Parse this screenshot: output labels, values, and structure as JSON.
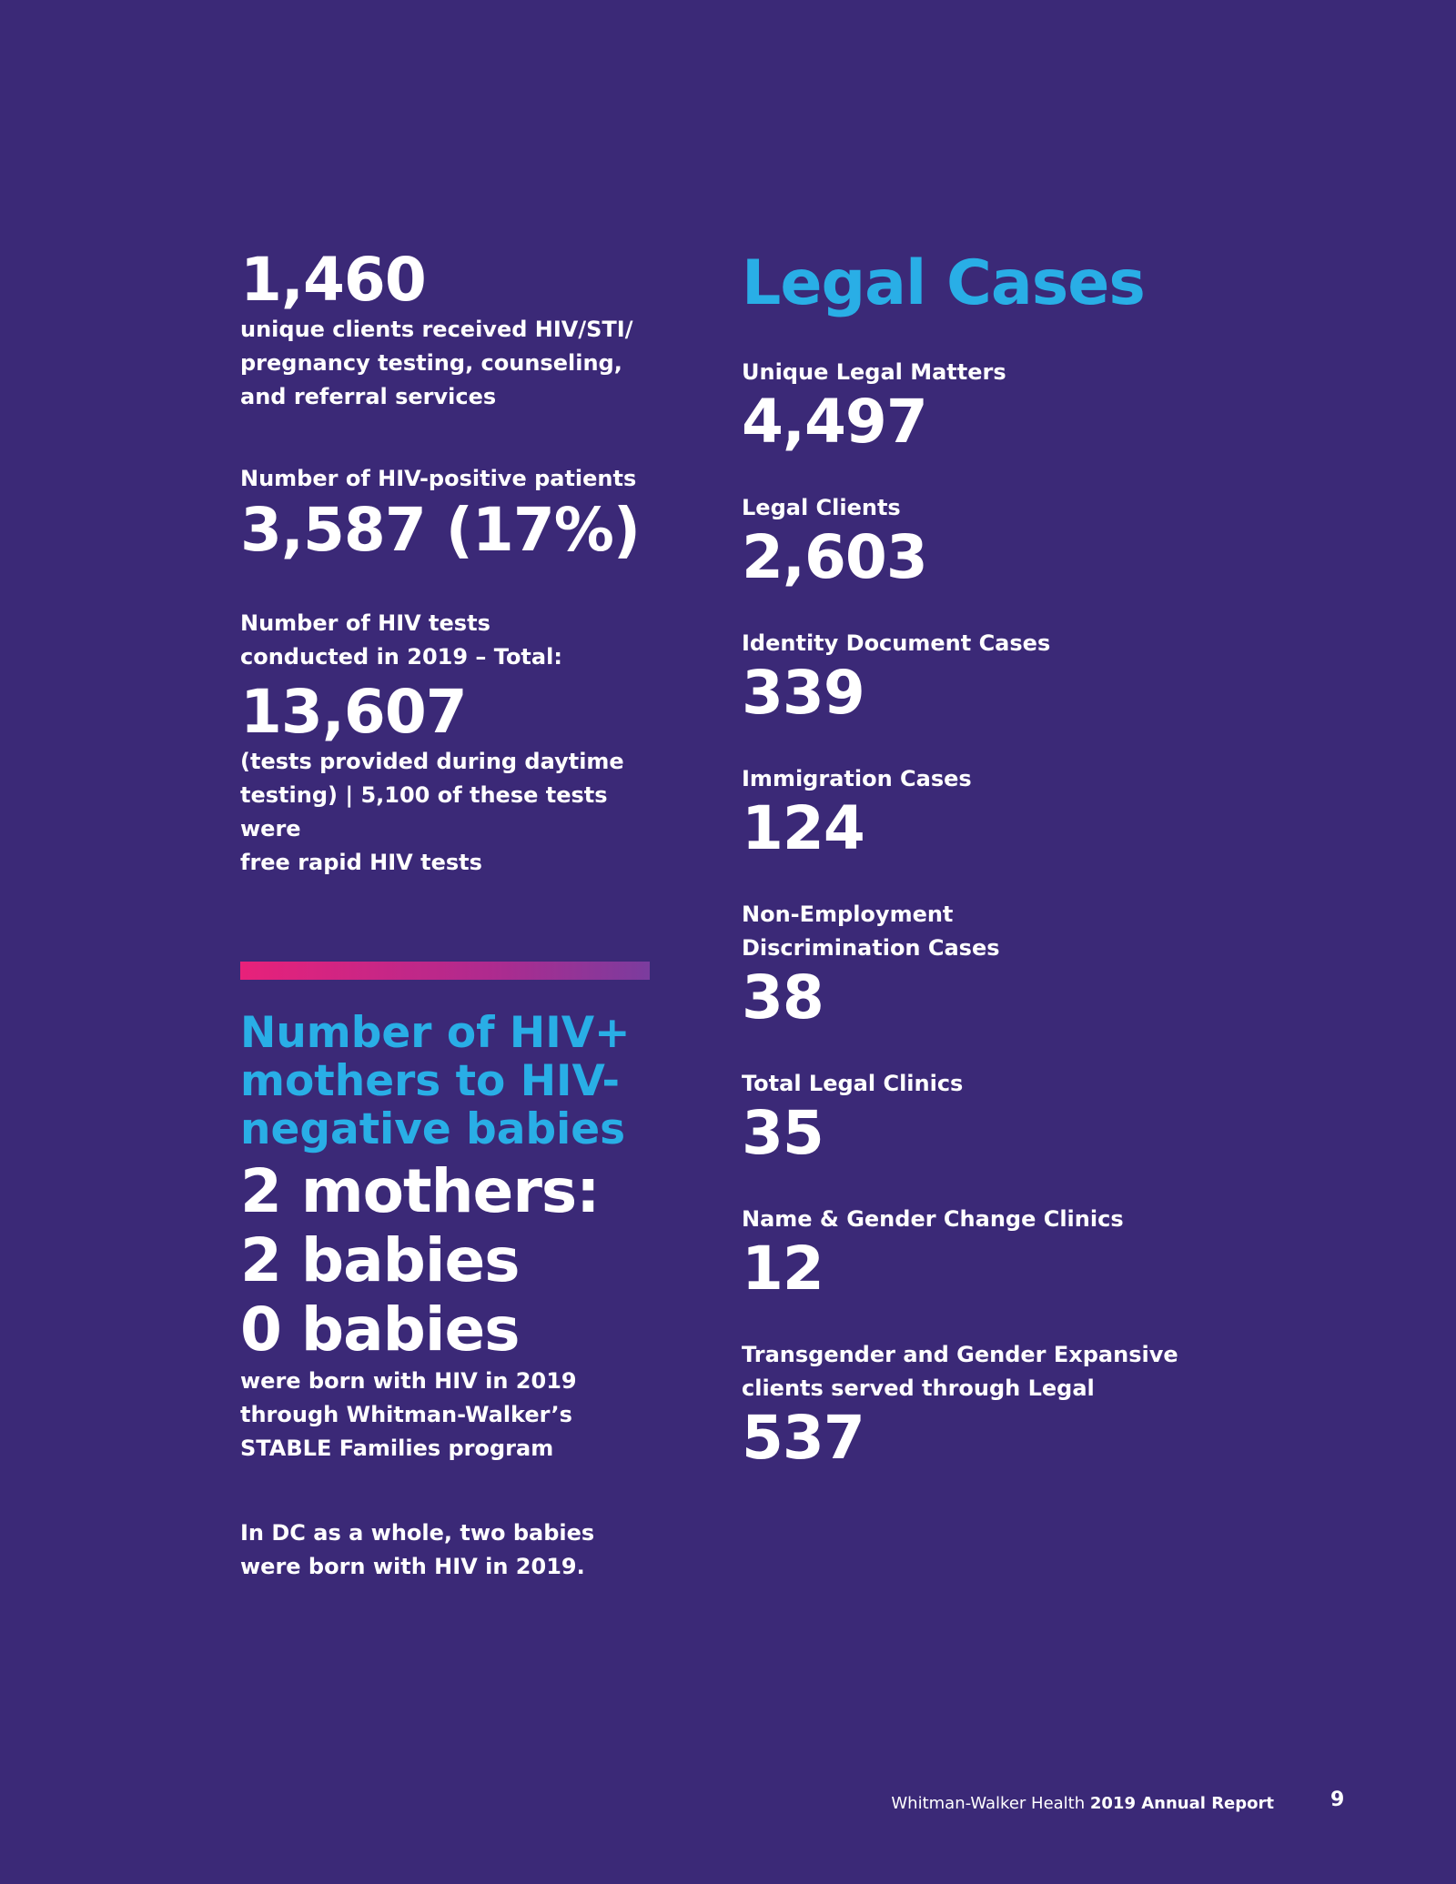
{
  "left": {
    "clients": {
      "number": "1,460",
      "desc": [
        "unique clients received HIV/STI/",
        "pregnancy testing, counseling,",
        "and referral services"
      ]
    },
    "hiv_positive": {
      "label": "Number of HIV-positive patients",
      "number": "3,587 (17%)"
    },
    "hiv_tests": {
      "label": [
        "Number of HIV tests",
        "conducted in 2019 – Total:"
      ],
      "number": "13,607",
      "desc": [
        "(tests provided during daytime",
        "testing) | 5,100 of these tests were",
        "free rapid HIV tests"
      ]
    },
    "mothers": {
      "heading": [
        "Number of HIV+",
        "mothers to HIV-",
        "negative babies"
      ],
      "lines": [
        "2 mothers:",
        "2 babies",
        "0 babies"
      ],
      "desc": [
        "were born with HIV in 2019",
        "through Whitman-Walker’s",
        "STABLE Families program"
      ],
      "note": [
        "In DC as a whole, two babies",
        "were born with HIV in 2019."
      ]
    }
  },
  "right": {
    "title": "Legal Cases",
    "stats": [
      {
        "label": [
          "Unique Legal Matters"
        ],
        "value": "4,497"
      },
      {
        "label": [
          "Legal Clients"
        ],
        "value": "2,603"
      },
      {
        "label": [
          "Identity Document Cases"
        ],
        "value": "339"
      },
      {
        "label": [
          "Immigration Cases"
        ],
        "value": "124"
      },
      {
        "label": [
          "Non-Employment",
          "Discrimination Cases"
        ],
        "value": "38"
      },
      {
        "label": [
          "Total Legal Clinics"
        ],
        "value": "35"
      },
      {
        "label": [
          "Name & Gender Change Clinics"
        ],
        "value": "12"
      },
      {
        "label": [
          "Transgender and Gender Expansive",
          "clients served through Legal"
        ],
        "value": "537"
      }
    ]
  },
  "footer": {
    "org": "Whitman-Walker Health",
    "report": "2019 Annual Report",
    "page": "9"
  },
  "colors": {
    "background": "#3b2977",
    "accent_blue": "#29aee6",
    "gradient_start": "#e8217a",
    "gradient_end": "#7b3c9e"
  }
}
